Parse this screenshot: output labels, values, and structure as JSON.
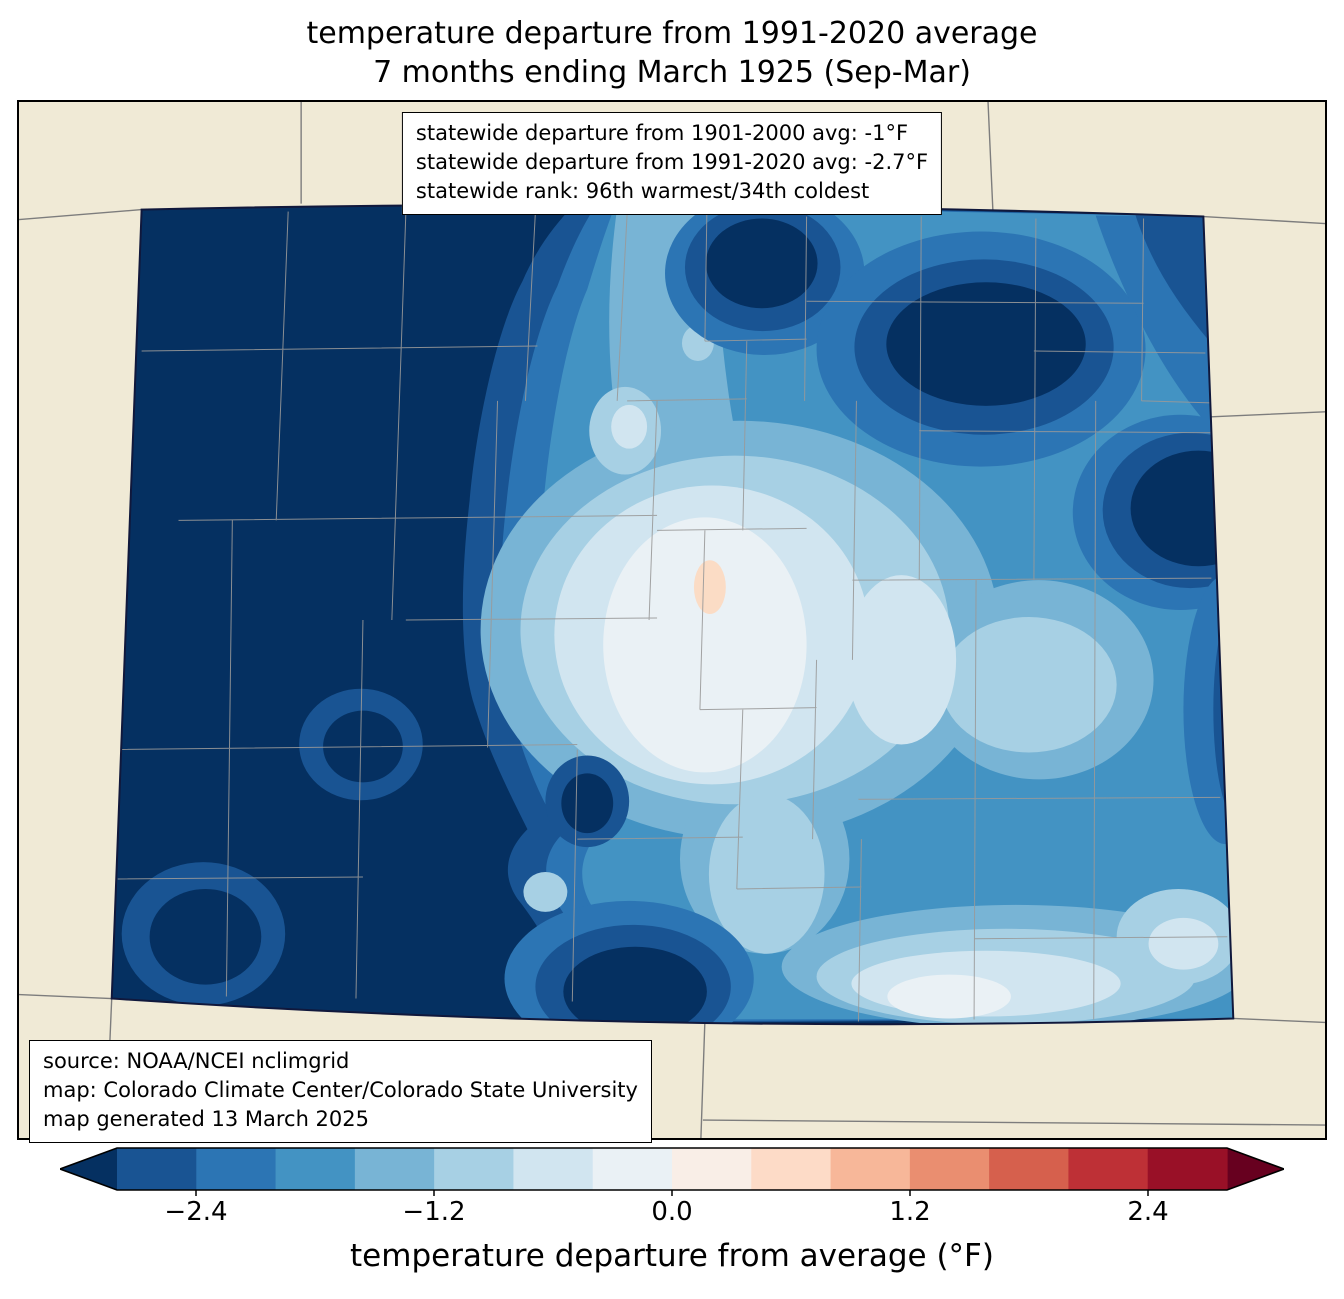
{
  "title": {
    "line1": "temperature departure from 1991-2020 average",
    "line2": "7 months ending March 1925 (Sep-Mar)"
  },
  "stats_box": {
    "lines": [
      "statewide departure from 1901-2000 avg: -1°F",
      "statewide departure from 1991-2020 avg: -2.7°F",
      "statewide rank: 96th warmest/34th coldest"
    ]
  },
  "credits_box": {
    "lines": [
      "source: NOAA/NCEI nclimgrid",
      "map: Colorado Climate Center/Colorado State University",
      "map generated 13 March 2025"
    ]
  },
  "colorbar": {
    "label": "temperature departure from average (°F)",
    "tick_labels": [
      "−2.4",
      "−1.2",
      "0.0",
      "1.2",
      "2.4"
    ],
    "under_color": "#053061",
    "over_color": "#67001f",
    "band_colors": [
      "#195493",
      "#2c75b4",
      "#4393c3",
      "#78b4d5",
      "#a7d0e4",
      "#d1e5f0",
      "#eaf1f5",
      "#f9eee7",
      "#fddbc7",
      "#f7b799",
      "#ea8e70",
      "#d6604d",
      "#be3036",
      "#991027"
    ]
  },
  "colors": {
    "background_beige": "#f0ead6",
    "state_border": "#10183c",
    "county_line": "#999999",
    "neighbor_state_line": "#7d7d7d",
    "coldest_fill": "#053061",
    "warm_spot_fill": "#fbdcc5"
  }
}
